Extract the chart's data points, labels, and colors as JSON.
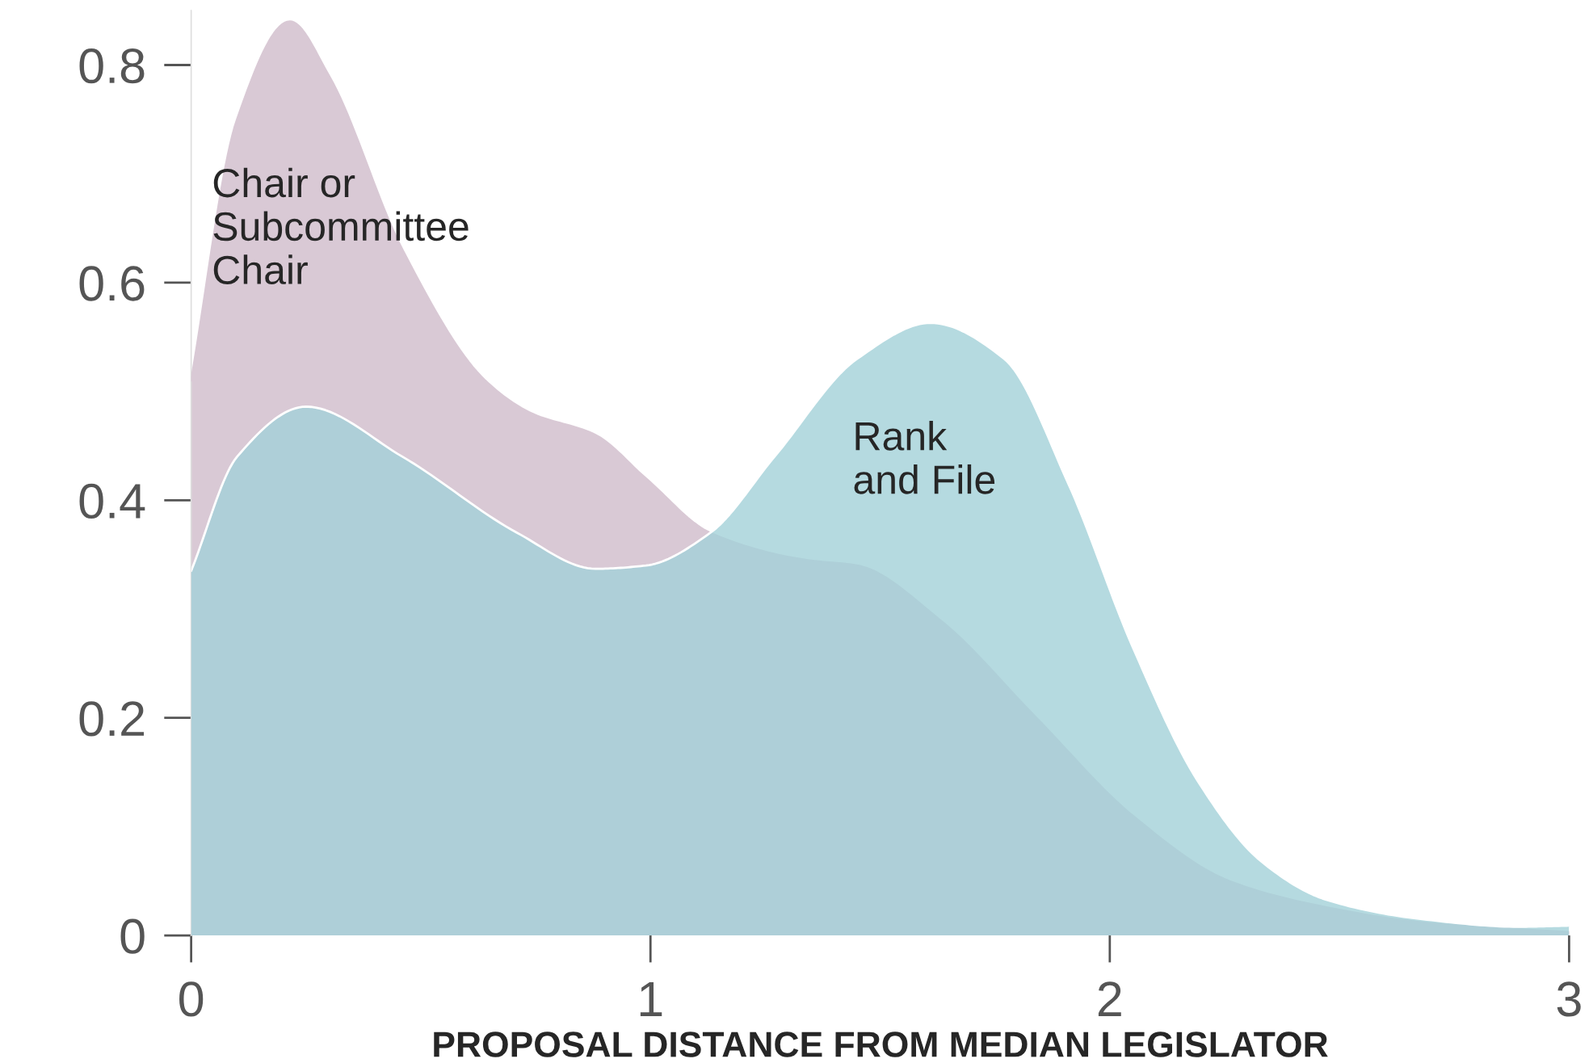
{
  "chart_data": {
    "type": "area",
    "xlabel": "PROPOSAL DISTANCE FROM MEDIAN LEGISLATOR",
    "xlim": [
      0,
      3
    ],
    "ylim": [
      0,
      0.85
    ],
    "xticks": [
      0,
      1,
      2,
      3
    ],
    "yticks": [
      0,
      0.2,
      0.4,
      0.6,
      0.8
    ],
    "grid": false,
    "legend": false,
    "series": [
      {
        "name": "Chair or Subcommittee Chair",
        "color": "#d9c9d5",
        "x": [
          0,
          0.1,
          0.215,
          0.3,
          0.46,
          0.64,
          0.74,
          0.88,
          0.99,
          1.13,
          1.34,
          1.45,
          1.63,
          1.84,
          2.05,
          2.26,
          2.47,
          2.68,
          3.0
        ],
        "values": [
          0.51,
          0.75,
          0.84,
          0.79,
          0.63,
          0.51,
          0.48,
          0.46,
          0.42,
          0.37,
          0.345,
          0.34,
          0.29,
          0.2,
          0.11,
          0.05,
          0.026,
          0.012,
          0.003
        ]
      },
      {
        "name": "Rank and File",
        "color": "#a2d1d8",
        "x": [
          0,
          0.1,
          0.25,
          0.46,
          0.71,
          0.88,
          0.99,
          1.13,
          1.27,
          1.45,
          1.61,
          1.77,
          1.91,
          2.05,
          2.19,
          2.33,
          2.47,
          2.68,
          2.89,
          3.0
        ],
        "values": [
          0.335,
          0.44,
          0.486,
          0.44,
          0.37,
          0.337,
          0.34,
          0.37,
          0.44,
          0.53,
          0.563,
          0.53,
          0.415,
          0.265,
          0.143,
          0.068,
          0.033,
          0.015,
          0.008,
          0.009
        ]
      }
    ]
  }
}
